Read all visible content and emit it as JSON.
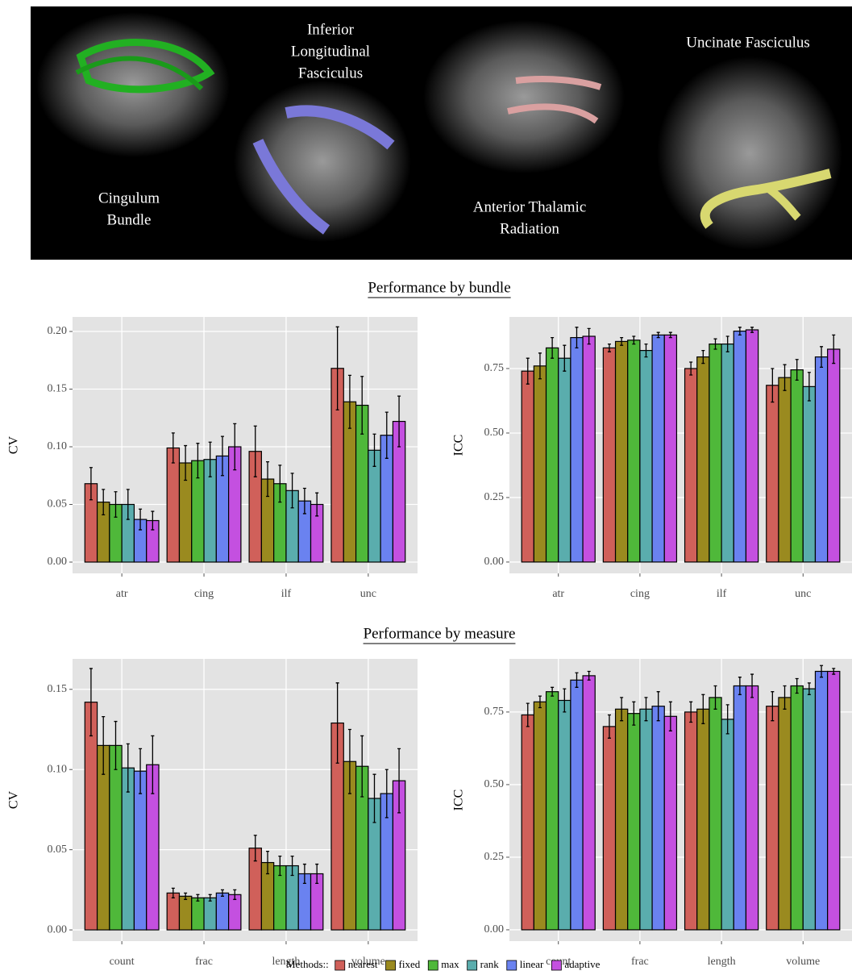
{
  "image_labels": [
    [
      "Cingulum",
      "Bundle"
    ],
    [
      "Inferior",
      "Longitudinal",
      "Fasciculus"
    ],
    [
      "Anterior Thalamic",
      "Radiation"
    ],
    [
      "Uncinate  Fasciculus"
    ]
  ],
  "sections": [
    "Performance by bundle",
    "Performance by measure"
  ],
  "legend_title": "Methods::",
  "chart_data": [
    {
      "type": "bar",
      "ylabel": "CV",
      "categories": [
        "atr",
        "cing",
        "ilf",
        "unc"
      ],
      "ylim": [
        -0.0098,
        0.2126
      ],
      "yticks": [
        {
          "value": 0,
          "label": "0.00"
        },
        {
          "value": 0.05,
          "label": "0.05"
        },
        {
          "value": 0.1,
          "label": "0.10"
        },
        {
          "value": 0.15,
          "label": "0.15"
        },
        {
          "value": 0.2,
          "label": "0.20"
        }
      ],
      "grid": true,
      "series": [
        {
          "name": "nearest",
          "color": "#d0605a",
          "values": [
            0.068,
            0.099,
            0.096,
            0.168
          ],
          "errors": [
            0.014,
            0.013,
            0.022,
            0.036
          ]
        },
        {
          "name": "fixed",
          "color": "#9a8a1f",
          "values": [
            0.052,
            0.086,
            0.072,
            0.139
          ],
          "errors": [
            0.011,
            0.015,
            0.015,
            0.023
          ]
        },
        {
          "name": "max",
          "color": "#4fb83a",
          "values": [
            0.05,
            0.088,
            0.068,
            0.136
          ],
          "errors": [
            0.011,
            0.015,
            0.016,
            0.025
          ]
        },
        {
          "name": "rank",
          "color": "#5aadad",
          "values": [
            0.05,
            0.089,
            0.062,
            0.097
          ],
          "errors": [
            0.013,
            0.015,
            0.015,
            0.014
          ]
        },
        {
          "name": "linear",
          "color": "#6a82f0",
          "values": [
            0.037,
            0.092,
            0.053,
            0.11
          ],
          "errors": [
            0.009,
            0.017,
            0.011,
            0.02
          ]
        },
        {
          "name": "adaptive",
          "color": "#c450e0",
          "values": [
            0.036,
            0.1,
            0.05,
            0.122
          ],
          "errors": [
            0.008,
            0.02,
            0.01,
            0.022
          ]
        }
      ]
    },
    {
      "type": "bar",
      "ylabel": "ICC",
      "categories": [
        "atr",
        "cing",
        "ilf",
        "unc"
      ],
      "ylim": [
        -0.044,
        0.95
      ],
      "yticks": [
        {
          "value": 0,
          "label": "0.00"
        },
        {
          "value": 0.25,
          "label": "0.25"
        },
        {
          "value": 0.5,
          "label": "0.50"
        },
        {
          "value": 0.75,
          "label": "0.75"
        }
      ],
      "grid": true,
      "series": [
        {
          "name": "nearest",
          "color": "#d0605a",
          "values": [
            0.74,
            0.83,
            0.75,
            0.685
          ],
          "errors": [
            0.05,
            0.015,
            0.025,
            0.065
          ]
        },
        {
          "name": "fixed",
          "color": "#9a8a1f",
          "values": [
            0.76,
            0.855,
            0.795,
            0.715
          ],
          "errors": [
            0.05,
            0.015,
            0.025,
            0.05
          ]
        },
        {
          "name": "max",
          "color": "#4fb83a",
          "values": [
            0.83,
            0.86,
            0.845,
            0.745
          ],
          "errors": [
            0.04,
            0.015,
            0.02,
            0.04
          ]
        },
        {
          "name": "rank",
          "color": "#5aadad",
          "values": [
            0.79,
            0.82,
            0.845,
            0.68
          ],
          "errors": [
            0.05,
            0.025,
            0.03,
            0.055
          ]
        },
        {
          "name": "linear",
          "color": "#6a82f0",
          "values": [
            0.87,
            0.88,
            0.895,
            0.795
          ],
          "errors": [
            0.04,
            0.01,
            0.015,
            0.04
          ]
        },
        {
          "name": "adaptive",
          "color": "#c450e0",
          "values": [
            0.875,
            0.88,
            0.9,
            0.825
          ],
          "errors": [
            0.03,
            0.01,
            0.01,
            0.055
          ]
        }
      ]
    },
    {
      "type": "bar",
      "ylabel": "CV",
      "categories": [
        "count",
        "frac",
        "length",
        "volume"
      ],
      "ylim": [
        -0.007,
        0.169
      ],
      "yticks": [
        {
          "value": 0,
          "label": "0.00"
        },
        {
          "value": 0.05,
          "label": "0.05"
        },
        {
          "value": 0.1,
          "label": "0.10"
        },
        {
          "value": 0.15,
          "label": "0.15"
        }
      ],
      "grid": true,
      "series": [
        {
          "name": "nearest",
          "color": "#d0605a",
          "values": [
            0.142,
            0.023,
            0.051,
            0.129
          ],
          "errors": [
            0.021,
            0.003,
            0.008,
            0.025
          ]
        },
        {
          "name": "fixed",
          "color": "#9a8a1f",
          "values": [
            0.115,
            0.021,
            0.042,
            0.105
          ],
          "errors": [
            0.018,
            0.002,
            0.007,
            0.02
          ]
        },
        {
          "name": "max",
          "color": "#4fb83a",
          "values": [
            0.115,
            0.02,
            0.04,
            0.102
          ],
          "errors": [
            0.015,
            0.002,
            0.006,
            0.019
          ]
        },
        {
          "name": "rank",
          "color": "#5aadad",
          "values": [
            0.101,
            0.02,
            0.04,
            0.082
          ],
          "errors": [
            0.015,
            0.002,
            0.006,
            0.015
          ]
        },
        {
          "name": "linear",
          "color": "#6a82f0",
          "values": [
            0.099,
            0.023,
            0.035,
            0.085
          ],
          "errors": [
            0.014,
            0.002,
            0.006,
            0.015
          ]
        },
        {
          "name": "adaptive",
          "color": "#c450e0",
          "values": [
            0.103,
            0.022,
            0.035,
            0.093
          ],
          "errors": [
            0.018,
            0.003,
            0.006,
            0.02
          ]
        }
      ]
    },
    {
      "type": "bar",
      "ylabel": "ICC",
      "categories": [
        "count",
        "frac",
        "length",
        "volume"
      ],
      "ylim": [
        -0.039,
        0.933
      ],
      "yticks": [
        {
          "value": 0,
          "label": "0.00"
        },
        {
          "value": 0.25,
          "label": "0.25"
        },
        {
          "value": 0.5,
          "label": "0.50"
        },
        {
          "value": 0.75,
          "label": "0.75"
        }
      ],
      "grid": true,
      "series": [
        {
          "name": "nearest",
          "color": "#d0605a",
          "values": [
            0.74,
            0.7,
            0.75,
            0.77
          ],
          "errors": [
            0.04,
            0.04,
            0.035,
            0.05
          ]
        },
        {
          "name": "fixed",
          "color": "#9a8a1f",
          "values": [
            0.785,
            0.76,
            0.76,
            0.8
          ],
          "errors": [
            0.02,
            0.04,
            0.05,
            0.04
          ]
        },
        {
          "name": "max",
          "color": "#4fb83a",
          "values": [
            0.82,
            0.745,
            0.8,
            0.84
          ],
          "errors": [
            0.015,
            0.04,
            0.04,
            0.025
          ]
        },
        {
          "name": "rank",
          "color": "#5aadad",
          "values": [
            0.79,
            0.76,
            0.725,
            0.83
          ],
          "errors": [
            0.04,
            0.04,
            0.05,
            0.02
          ]
        },
        {
          "name": "linear",
          "color": "#6a82f0",
          "values": [
            0.86,
            0.77,
            0.84,
            0.89
          ],
          "errors": [
            0.025,
            0.05,
            0.03,
            0.02
          ]
        },
        {
          "name": "adaptive",
          "color": "#c450e0",
          "values": [
            0.875,
            0.735,
            0.84,
            0.89
          ],
          "errors": [
            0.015,
            0.05,
            0.04,
            0.01
          ]
        }
      ]
    }
  ]
}
